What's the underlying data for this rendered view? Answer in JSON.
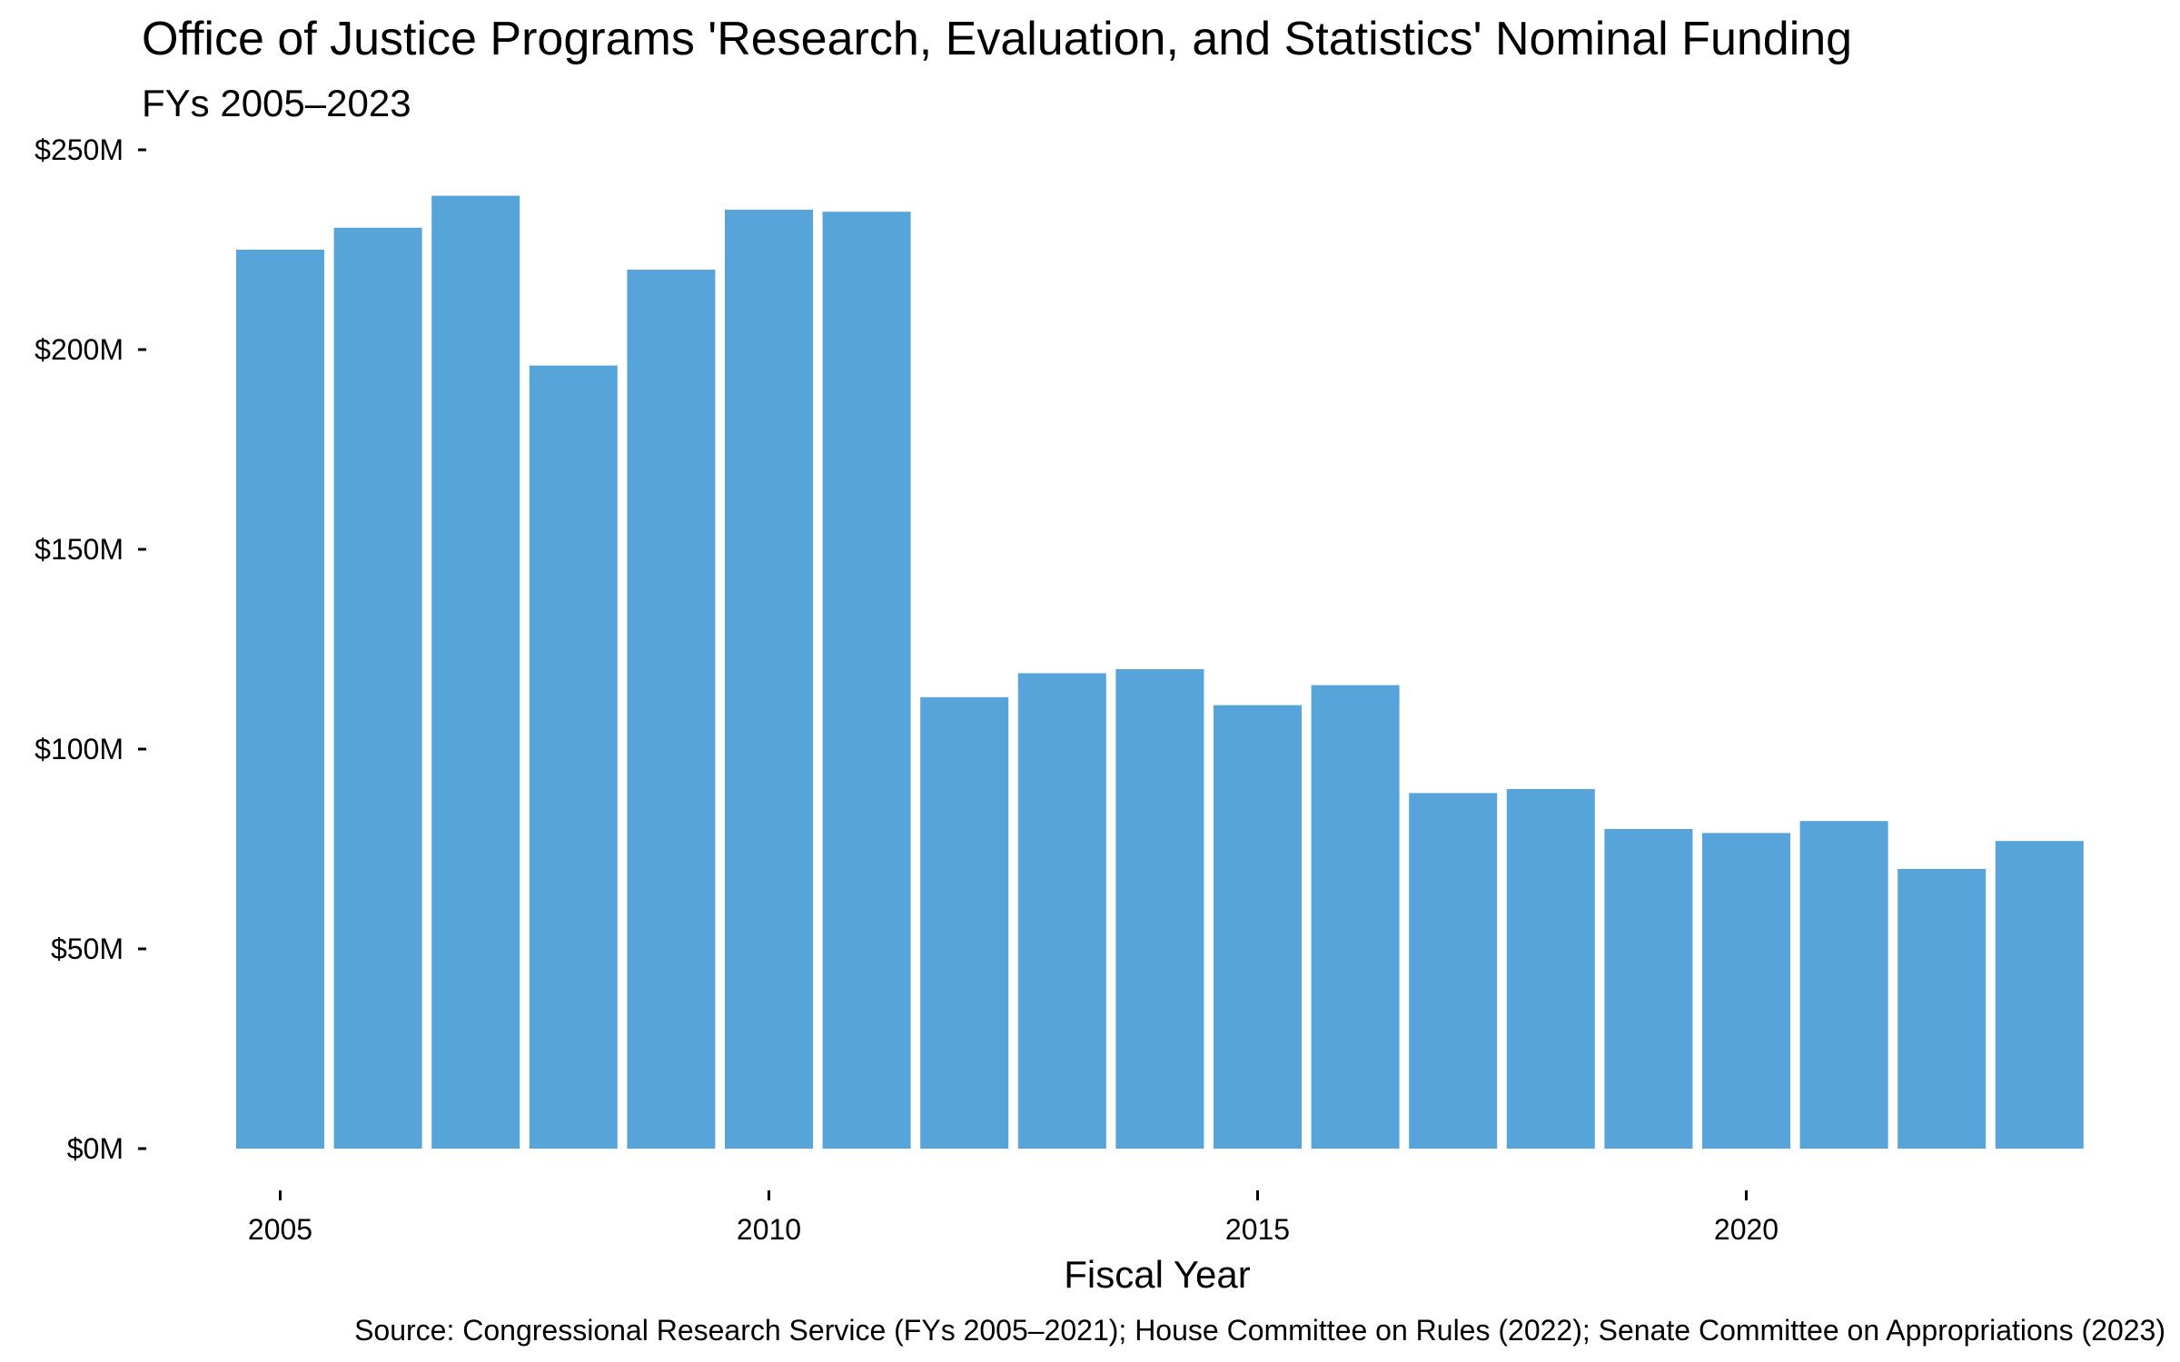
{
  "chart_data": {
    "type": "bar",
    "title": "Office of Justice Programs 'Research, Evaluation, and Statistics' Nominal Funding",
    "subtitle": "FYs 2005–2023",
    "xlabel": "Fiscal Year",
    "ylabel": "",
    "caption": "Source: Congressional Research Service (FYs 2005–2021); House Committee on Rules (2022); Senate Committee on Appropriations (2023)",
    "bar_color": "#56a4da",
    "grid": false,
    "ylim": [
      0,
      250
    ],
    "y_ticks": [
      {
        "value": 0,
        "label": "$0M"
      },
      {
        "value": 50,
        "label": "$50M"
      },
      {
        "value": 100,
        "label": "$100M"
      },
      {
        "value": 150,
        "label": "$150M"
      },
      {
        "value": 200,
        "label": "$200M"
      },
      {
        "value": 250,
        "label": "$250M"
      }
    ],
    "x_ticks": [
      {
        "value": 2005,
        "label": "2005"
      },
      {
        "value": 2010,
        "label": "2010"
      },
      {
        "value": 2015,
        "label": "2015"
      },
      {
        "value": 2020,
        "label": "2020"
      }
    ],
    "categories": [
      2005,
      2006,
      2007,
      2008,
      2009,
      2010,
      2011,
      2012,
      2013,
      2014,
      2015,
      2016,
      2017,
      2018,
      2019,
      2020,
      2021,
      2022,
      2023
    ],
    "values": [
      225,
      230.5,
      238.5,
      196,
      220,
      235,
      234.5,
      113,
      119,
      120,
      111,
      116,
      89,
      90,
      80,
      79,
      82,
      70,
      77
    ]
  }
}
